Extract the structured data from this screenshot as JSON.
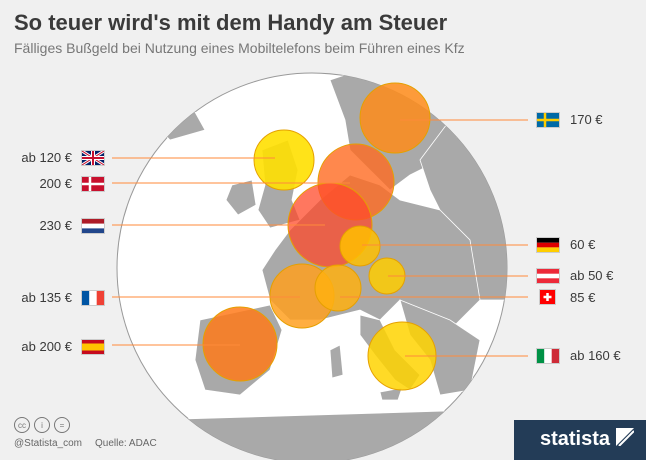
{
  "header": {
    "title": "So teuer wird's mit dem Handy am Steuer",
    "subtitle": "Fälliges Bußgeld bei Nutzung eines Mobiltelefons beim Führen eines Kfz"
  },
  "countries": {
    "uk": {
      "label": "ab 120 €",
      "value": 120
    },
    "dk": {
      "label": "200 €",
      "value": 200
    },
    "nl": {
      "label": "230 €",
      "value": 230
    },
    "fr": {
      "label": "ab 135 €",
      "value": 135
    },
    "es": {
      "label": "ab 200 €",
      "value": 200
    },
    "se": {
      "label": "170 €",
      "value": 170
    },
    "de": {
      "label": "60 €",
      "value": 60
    },
    "at": {
      "label": "ab 50 €",
      "value": 50
    },
    "ch": {
      "label": "85 €",
      "value": 85
    },
    "it": {
      "label": "ab 160 €",
      "value": 160
    }
  },
  "footer": {
    "handle": "@Statista_com",
    "source": "Quelle: ADAC",
    "brand": "statista"
  },
  "colors": {
    "yellow": "#ffd600",
    "orange": "#ff9b1a",
    "red": "#ff4a2a",
    "land": "#a8a8a8",
    "sea": "#ffffff"
  }
}
